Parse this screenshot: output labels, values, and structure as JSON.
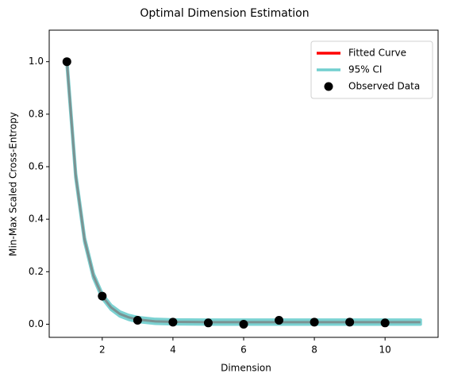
{
  "chart_data": {
    "type": "line",
    "title": "Optimal Dimension Estimation",
    "x_label": "Dimension",
    "y_label": "Min-Max Scaled Cross-Entropy",
    "xlim": [
      0.5,
      11.5
    ],
    "ylim": [
      -0.05,
      1.12
    ],
    "xticks": [
      2,
      4,
      6,
      8,
      10
    ],
    "yticks": [
      {
        "value": 0,
        "label": "0.0"
      },
      0.2,
      0.4,
      0.6,
      0.8,
      {
        "value": 1,
        "label": "1.0"
      }
    ],
    "legend": "upper right",
    "series": [
      {
        "name": "Fitted Curve",
        "color": "#ff0000",
        "x": [
          1,
          1.25,
          1.5,
          1.75,
          2,
          2.25,
          2.5,
          2.75,
          3,
          3.5,
          4,
          5,
          6,
          7,
          8,
          9,
          10,
          11
        ],
        "values": [
          1.0,
          0.566,
          0.322,
          0.185,
          0.107,
          0.064,
          0.039,
          0.026,
          0.018,
          0.011,
          0.009,
          0.008,
          0.008,
          0.008,
          0.008,
          0.008,
          0.008,
          0.008
        ]
      },
      {
        "name": "95% CI",
        "color": "#4fc4c4",
        "x": [
          1,
          1.25,
          1.5,
          1.75,
          2,
          2.25,
          2.5,
          2.75,
          3,
          3.5,
          4,
          5,
          6,
          7,
          8,
          9,
          10,
          11
        ],
        "lower": [
          0.992,
          0.558,
          0.314,
          0.177,
          0.099,
          0.056,
          0.031,
          0.018,
          0.01,
          0.003,
          0.001,
          0.0,
          0.0,
          0.0,
          0.0,
          0.0,
          0.0,
          0.0
        ],
        "upper": [
          1.008,
          0.574,
          0.33,
          0.193,
          0.115,
          0.072,
          0.047,
          0.034,
          0.026,
          0.019,
          0.017,
          0.016,
          0.016,
          0.016,
          0.016,
          0.016,
          0.016,
          0.016
        ]
      },
      {
        "name": "Observed Data",
        "color": "#000000",
        "x": [
          1,
          2,
          3,
          4,
          5,
          6,
          7,
          8,
          9,
          10
        ],
        "values": [
          1.0,
          0.107,
          0.015,
          0.008,
          0.005,
          0.0,
          0.015,
          0.008,
          0.008,
          0.005
        ]
      }
    ]
  }
}
